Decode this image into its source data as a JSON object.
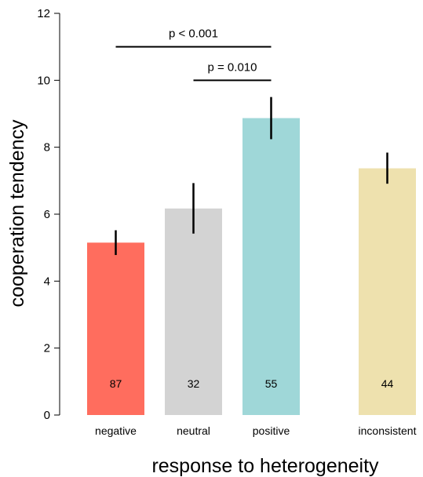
{
  "chart_data": {
    "type": "bar",
    "xlabel": "response to heterogeneity",
    "ylabel": "cooperation tendency",
    "ylim": [
      0,
      12
    ],
    "yticks": [
      0,
      2,
      4,
      6,
      8,
      10,
      12
    ],
    "grid": false,
    "legend": "none",
    "categories": [
      "negative",
      "neutral",
      "positive",
      "inconsistent"
    ],
    "values": [
      5.15,
      6.17,
      8.87,
      7.37
    ],
    "error_low": [
      4.78,
      5.42,
      8.24,
      6.91
    ],
    "error_high": [
      5.52,
      6.93,
      9.5,
      7.84
    ],
    "n_labels": [
      "87",
      "32",
      "55",
      "44"
    ],
    "colors": [
      "#ff6d5e",
      "#d3d3d3",
      "#9fd7d8",
      "#eee1ae"
    ],
    "significance": [
      {
        "from": 0,
        "to": 2,
        "y": 11.0,
        "label": "p < 0.001"
      },
      {
        "from": 1,
        "to": 2,
        "y": 10.0,
        "label": "p = 0.010"
      }
    ]
  }
}
